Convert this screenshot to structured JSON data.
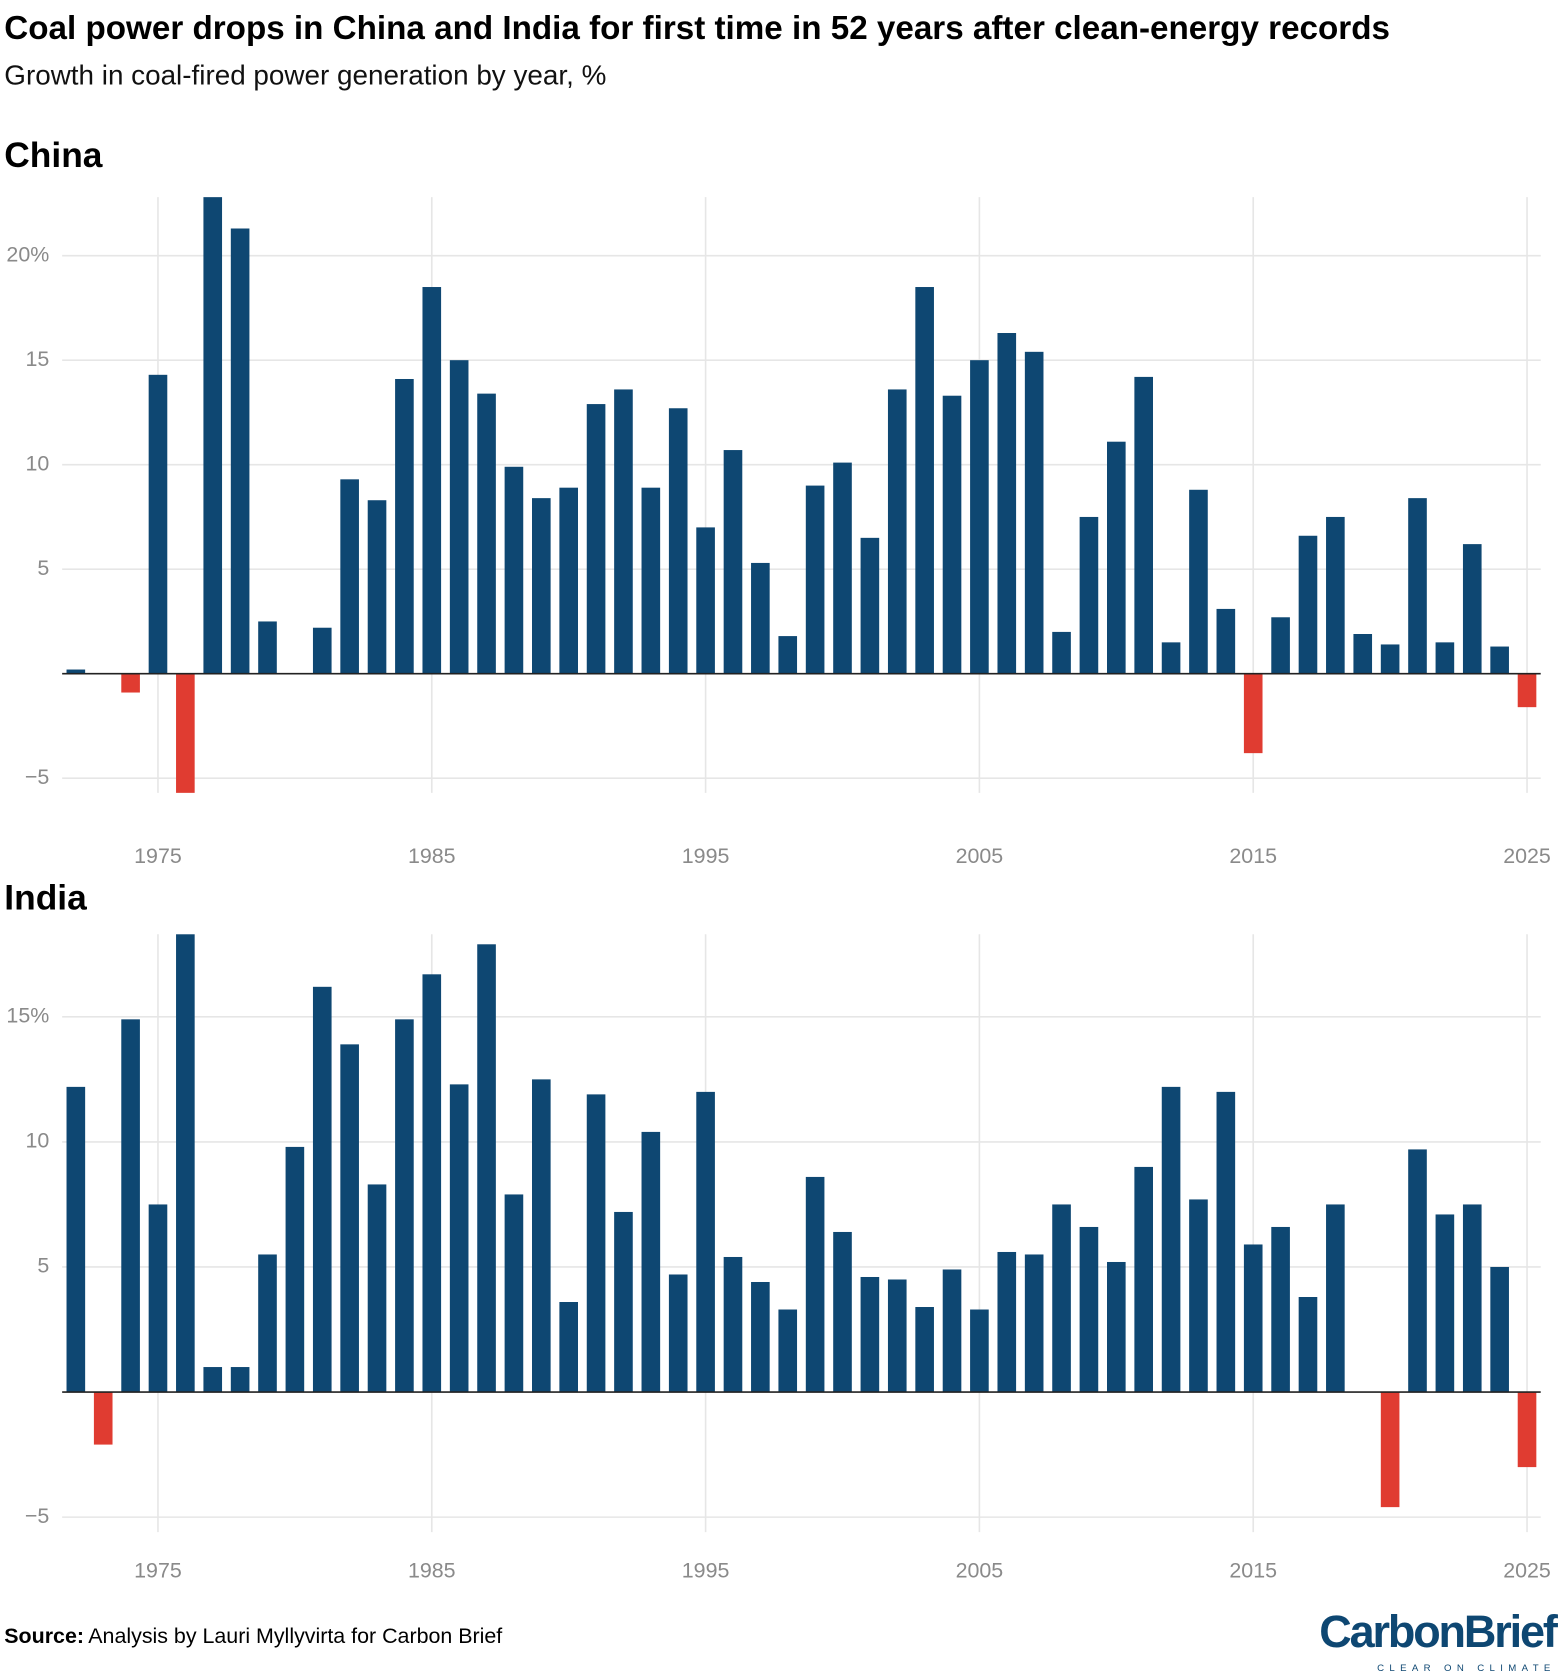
{
  "title": "Coal power drops in China and India for first time in 52 years after clean-energy records",
  "subtitle": "Growth in coal-fired power generation by year, %",
  "source_label": "Source:",
  "source_text": "Analysis by Lauri Myllyvirta for Carbon Brief",
  "logo": {
    "name": "CarbonBrief",
    "tagline": "CLEAR ON CLIMATE"
  },
  "chart_data": [
    {
      "type": "bar",
      "title": "China",
      "color": "#0e4772",
      "negative_color": "#e03c31",
      "grid": true,
      "x": [
        1972,
        1973,
        1974,
        1975,
        1976,
        1977,
        1978,
        1979,
        1980,
        1981,
        1982,
        1983,
        1984,
        1985,
        1986,
        1987,
        1988,
        1989,
        1990,
        1991,
        1992,
        1993,
        1994,
        1995,
        1996,
        1997,
        1998,
        1999,
        2000,
        2001,
        2002,
        2003,
        2004,
        2005,
        2006,
        2007,
        2008,
        2009,
        2010,
        2011,
        2012,
        2013,
        2014,
        2015,
        2016,
        2017,
        2018,
        2019,
        2020,
        2021,
        2022,
        2023,
        2024,
        2025
      ],
      "values": [
        0.2,
        0,
        -0.9,
        14.3,
        -5.7,
        22.8,
        21.3,
        2.5,
        0,
        2.2,
        9.3,
        8.3,
        14.1,
        18.5,
        15.0,
        13.4,
        9.9,
        8.4,
        8.9,
        12.9,
        13.6,
        8.9,
        12.7,
        7.0,
        10.7,
        5.3,
        1.8,
        9.0,
        10.1,
        6.5,
        13.6,
        18.5,
        13.3,
        15.0,
        16.3,
        15.4,
        2.0,
        7.5,
        11.1,
        14.2,
        1.5,
        8.8,
        3.1,
        -3.8,
        2.7,
        6.6,
        7.5,
        1.9,
        1.4,
        8.4,
        1.5,
        6.2,
        1.3,
        -1.6
      ],
      "xlim": [
        1971.5,
        2025.5
      ],
      "xticks": [
        1975,
        1985,
        1995,
        2005,
        2015,
        2025
      ],
      "ylim": [
        -5.7,
        22.8
      ],
      "yticks": [
        {
          "value": -5,
          "label": "−5"
        },
        5,
        10,
        15,
        {
          "value": 20,
          "label": "20%"
        }
      ]
    },
    {
      "type": "bar",
      "title": "India",
      "color": "#0e4772",
      "negative_color": "#e03c31",
      "grid": true,
      "x": [
        1972,
        1973,
        1974,
        1975,
        1976,
        1977,
        1978,
        1979,
        1980,
        1981,
        1982,
        1983,
        1984,
        1985,
        1986,
        1987,
        1988,
        1989,
        1990,
        1991,
        1992,
        1993,
        1994,
        1995,
        1996,
        1997,
        1998,
        1999,
        2000,
        2001,
        2002,
        2003,
        2004,
        2005,
        2006,
        2007,
        2008,
        2009,
        2010,
        2011,
        2012,
        2013,
        2014,
        2015,
        2016,
        2017,
        2018,
        2019,
        2020,
        2021,
        2022,
        2023,
        2024,
        2025
      ],
      "values": [
        12.2,
        -2.1,
        14.9,
        7.5,
        18.3,
        1.0,
        1.0,
        5.5,
        9.8,
        16.2,
        13.9,
        8.3,
        14.9,
        16.7,
        12.3,
        17.9,
        7.9,
        12.5,
        3.6,
        11.9,
        7.2,
        10.4,
        4.7,
        12.0,
        5.4,
        4.4,
        3.3,
        8.6,
        6.4,
        4.6,
        4.5,
        3.4,
        4.9,
        3.3,
        5.6,
        5.5,
        7.5,
        6.6,
        5.2,
        9.0,
        12.2,
        7.7,
        12.0,
        5.9,
        6.6,
        3.8,
        7.5,
        0,
        -4.6,
        9.7,
        7.1,
        7.5,
        5.0,
        -3.0
      ],
      "xlim": [
        1971.5,
        2025.5
      ],
      "xticks": [
        1975,
        1985,
        1995,
        2005,
        2015,
        2025
      ],
      "ylim": [
        -5.6,
        18.3
      ],
      "yticks": [
        {
          "value": -5,
          "label": "−5"
        },
        5,
        10,
        {
          "value": 15,
          "label": "15%"
        }
      ]
    }
  ]
}
